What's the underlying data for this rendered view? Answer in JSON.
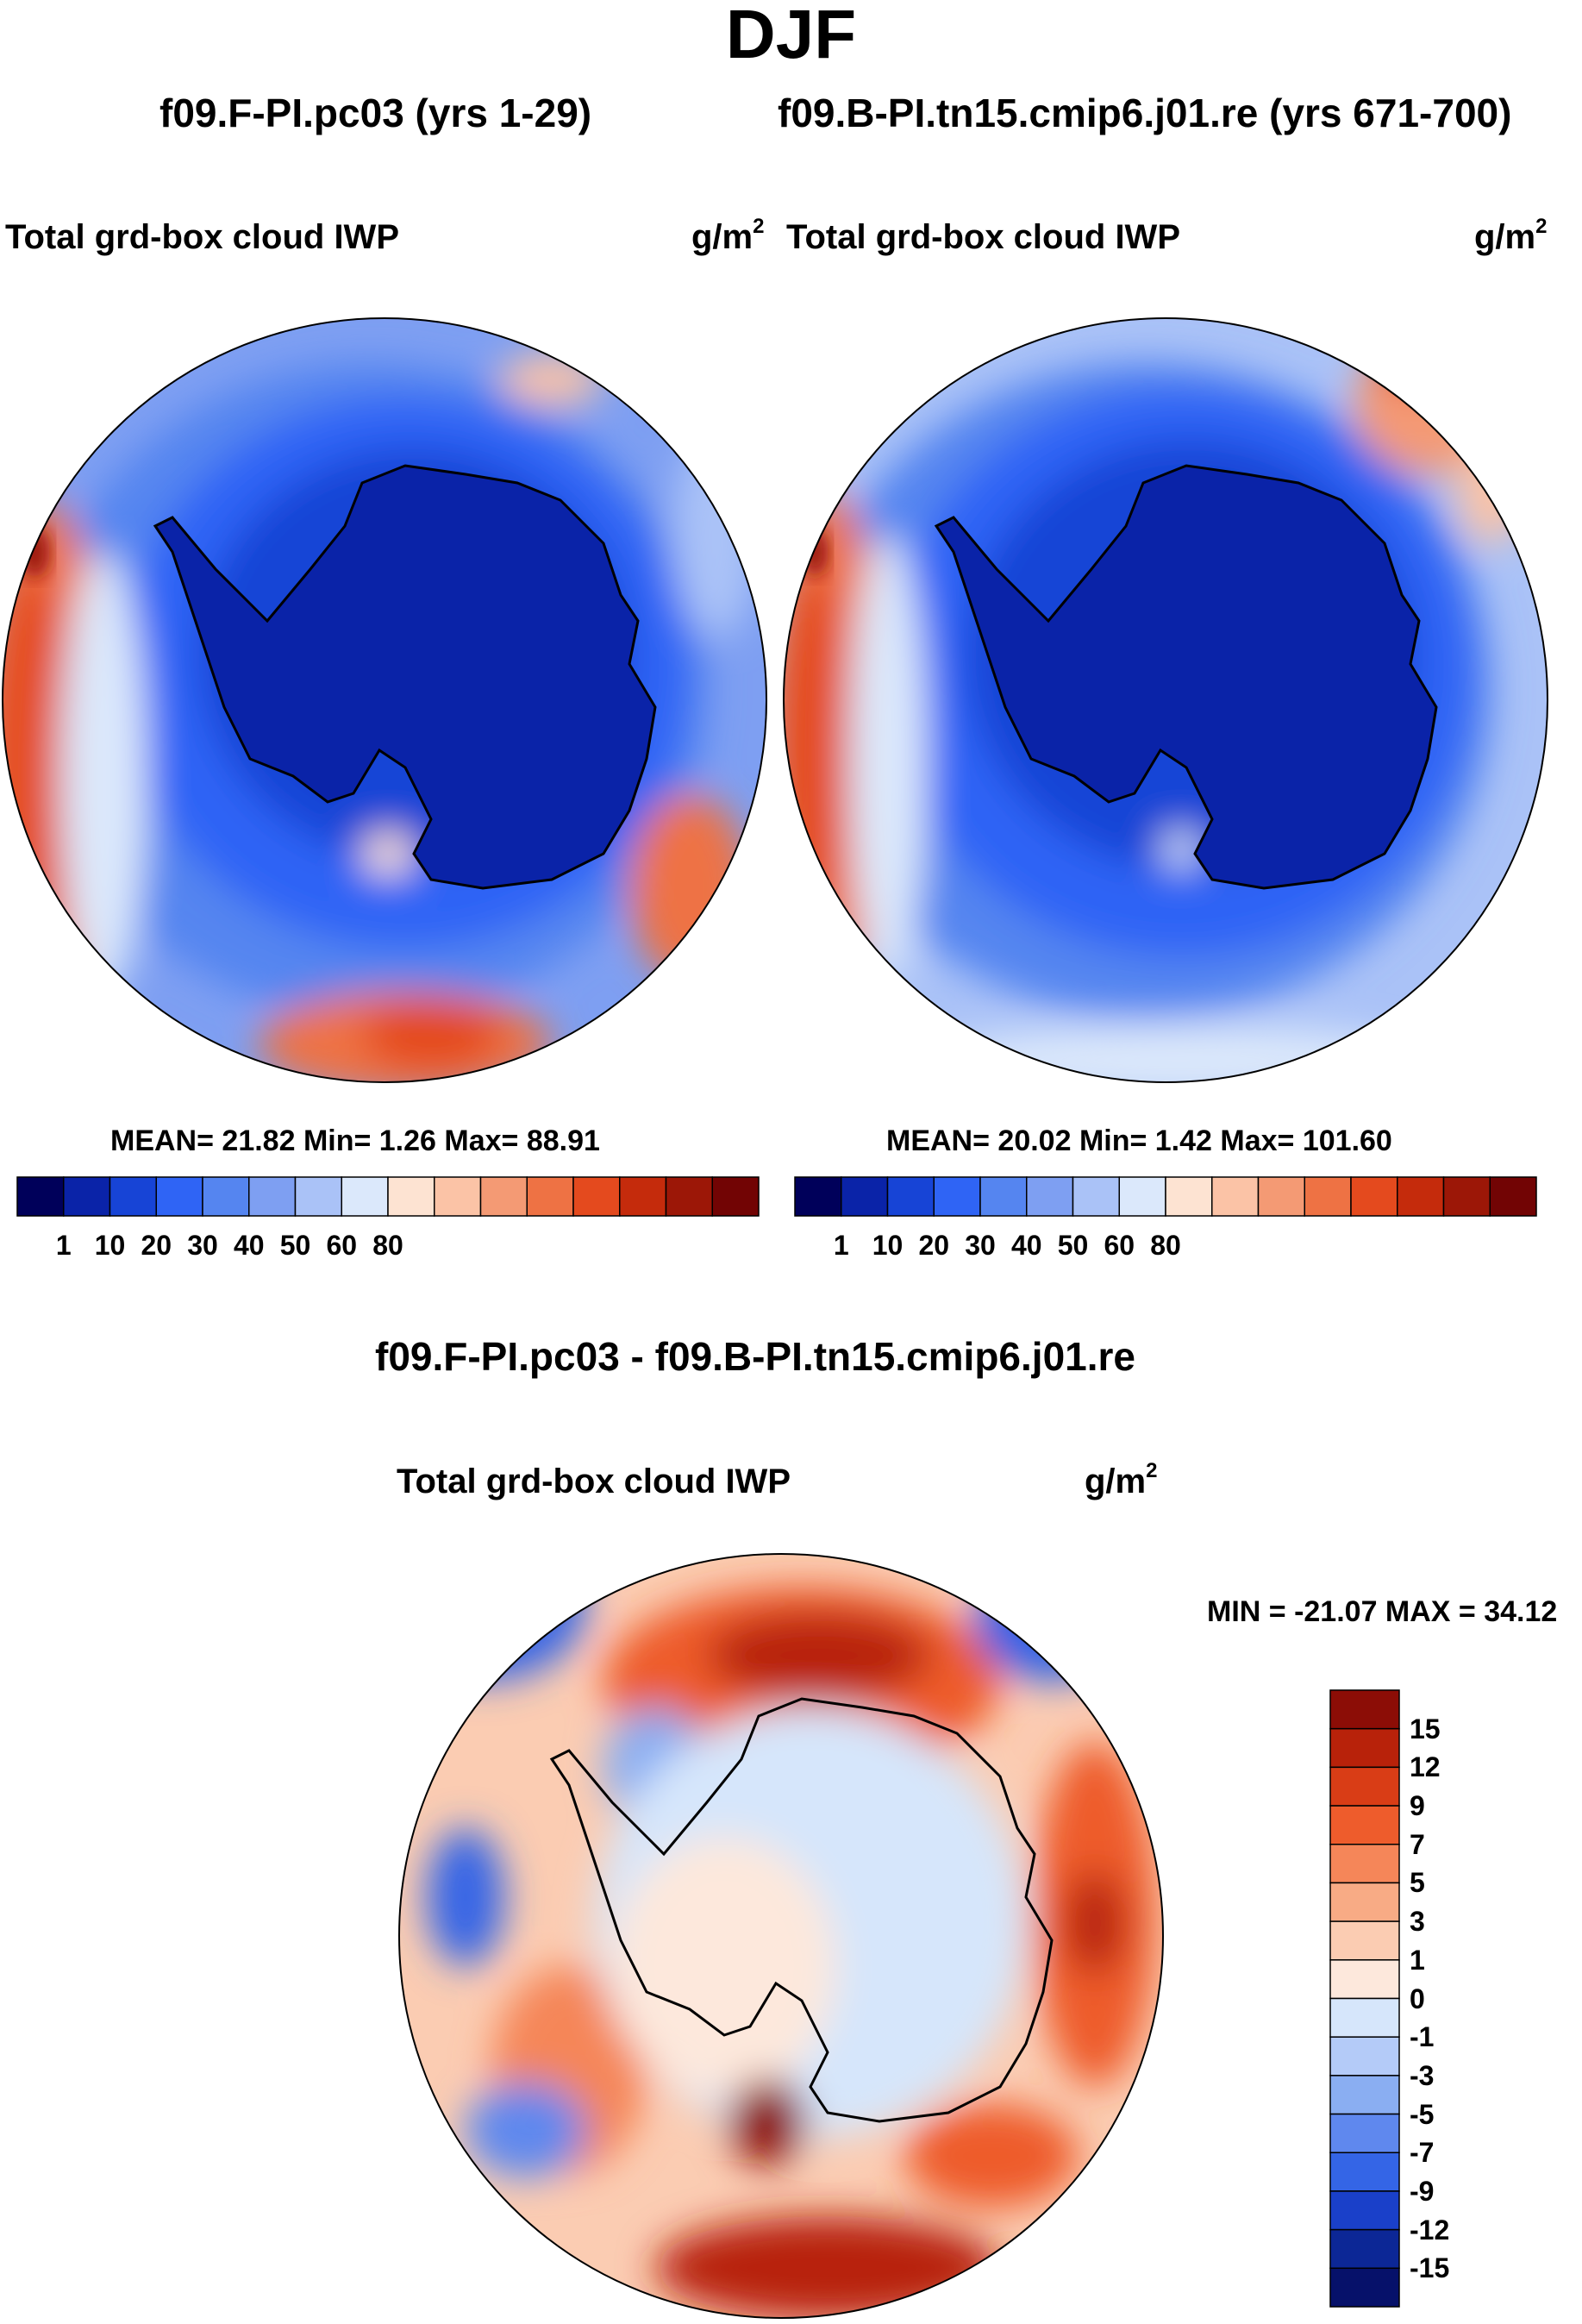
{
  "page": {
    "title": "DJF",
    "panels": [
      {
        "case": "f09.F-PI.pc03 (yrs 1-29)",
        "variable": "Total grd-box cloud IWP",
        "units_base": "g/m",
        "units_exp": "2",
        "stats": "MEAN=  21.82  Min=   1.26  Max=  88.91"
      },
      {
        "case": "f09.B-PI.tn15.cmip6.j01.re (yrs 671-700)",
        "variable": "Total grd-box cloud IWP",
        "units_base": "g/m",
        "units_exp": "2",
        "stats": "MEAN=  20.02  Min=   1.42  Max= 101.60"
      }
    ],
    "diff": {
      "case": "f09.F-PI.pc03 - f09.B-PI.tn15.cmip6.j01.re",
      "variable": "Total grd-box cloud IWP",
      "units_base": "g/m",
      "units_exp": "2",
      "stats": "MIN = -21.07 MAX =  34.12"
    }
  },
  "chart_data": [
    {
      "type": "heatmap",
      "projection": "south-polar-stereographic",
      "title": "f09.F-PI.pc03 (yrs 1-29)",
      "variable": "Total grd-box cloud IWP",
      "units": "g/m^2",
      "mean": 21.82,
      "min": 1.26,
      "max": 88.91,
      "colorbar_orientation": "horizontal",
      "colorbar_ticks": [
        "1",
        "10",
        "20",
        "30",
        "40",
        "50",
        "60",
        "80"
      ],
      "colorbar_colors": [
        "#00005a",
        "#0a23a8",
        "#1744d6",
        "#2f64f5",
        "#5585f0",
        "#7e9ff2",
        "#aac2f7",
        "#dbe8fb",
        "#fde3d2",
        "#fbc3a6",
        "#f49a74",
        "#ee7244",
        "#e44a1e",
        "#c52b0c",
        "#9c1707",
        "#720404"
      ]
    },
    {
      "type": "heatmap",
      "projection": "south-polar-stereographic",
      "title": "f09.B-PI.tn15.cmip6.j01.re (yrs 671-700)",
      "variable": "Total grd-box cloud IWP",
      "units": "g/m^2",
      "mean": 20.02,
      "min": 1.42,
      "max": 101.6,
      "colorbar_orientation": "horizontal",
      "colorbar_ticks": [
        "1",
        "10",
        "20",
        "30",
        "40",
        "50",
        "60",
        "80"
      ],
      "colorbar_colors": [
        "#00005a",
        "#0a23a8",
        "#1744d6",
        "#2f64f5",
        "#5585f0",
        "#7e9ff2",
        "#aac2f7",
        "#dbe8fb",
        "#fde3d2",
        "#fbc3a6",
        "#f49a74",
        "#ee7244",
        "#e44a1e",
        "#c52b0c",
        "#9c1707",
        "#720404"
      ]
    },
    {
      "type": "heatmap",
      "projection": "south-polar-stereographic",
      "title": "f09.F-PI.pc03 - f09.B-PI.tn15.cmip6.j01.re",
      "variable": "Total grd-box cloud IWP",
      "units": "g/m^2",
      "min": -21.07,
      "max": 34.12,
      "colorbar_orientation": "vertical",
      "colorbar_ticks": [
        "15",
        "12",
        "9",
        "7",
        "5",
        "3",
        "1",
        "0",
        "-1",
        "-3",
        "-5",
        "-7",
        "-9",
        "-12",
        "-15"
      ],
      "colorbar_colors": [
        "#8c0d06",
        "#b8220a",
        "#d93d16",
        "#ee5c2c",
        "#f58659",
        "#f8ab85",
        "#fbccb2",
        "#fde8dc",
        "#d6e6fb",
        "#b4cbf8",
        "#8aaef2",
        "#5f88ee",
        "#3465e6",
        "#1a40c9",
        "#0c2796",
        "#06116a"
      ]
    }
  ]
}
